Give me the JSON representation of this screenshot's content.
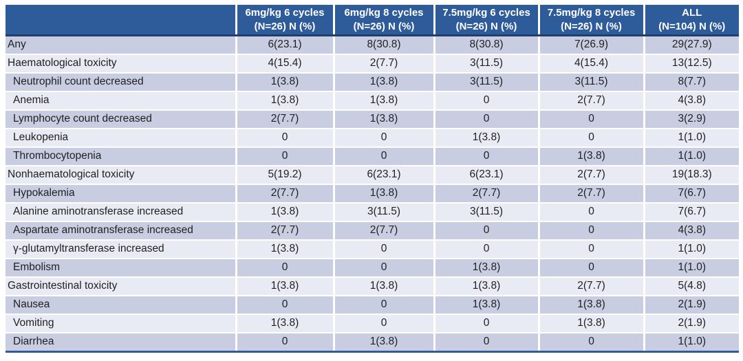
{
  "chart_data": {
    "type": "table",
    "header": {
      "row_label_column": "",
      "columns": [
        {
          "line1": "6mg/kg 6 cycles",
          "line2": "(N=26) N (%)"
        },
        {
          "line1": "6mg/kg 8 cycles",
          "line2": "(N=26) N (%)"
        },
        {
          "line1": "7.5mg/kg 6 cycles",
          "line2": "(N=26) N (%)"
        },
        {
          "line1": "7.5mg/kg 8 cycles",
          "line2": "(N=26) N (%)"
        },
        {
          "line1": "ALL",
          "line2": "(N=104) N (%)"
        }
      ]
    },
    "rows": [
      {
        "label": "Any",
        "level": 0,
        "values": [
          "6(23.1)",
          "8(30.8)",
          "8(30.8)",
          "7(26.9)",
          "29(27.9)"
        ]
      },
      {
        "label": "Haematological toxicity",
        "level": 0,
        "values": [
          "4(15.4)",
          "2(7.7)",
          "3(11.5)",
          "4(15.4)",
          "13(12.5)"
        ]
      },
      {
        "label": "Neutrophil count decreased",
        "level": 1,
        "values": [
          "1(3.8)",
          "1(3.8)",
          "3(11.5)",
          "3(11.5)",
          "8(7.7)"
        ]
      },
      {
        "label": "Anemia",
        "level": 1,
        "values": [
          "1(3.8)",
          "1(3.8)",
          "0",
          "2(7.7)",
          "4(3.8)"
        ]
      },
      {
        "label": "Lymphocyte count decreased",
        "level": 1,
        "values": [
          "2(7.7)",
          "1(3.8)",
          "0",
          "0",
          "3(2.9)"
        ]
      },
      {
        "label": "Leukopenia",
        "level": 1,
        "values": [
          "0",
          "0",
          "1(3.8)",
          "0",
          "1(1.0)"
        ]
      },
      {
        "label": "Thrombocytopenia",
        "level": 1,
        "values": [
          "0",
          "0",
          "0",
          "1(3.8)",
          "1(1.0)"
        ]
      },
      {
        "label": "Nonhaematological toxicity",
        "level": 0,
        "values": [
          "5(19.2)",
          "6(23.1)",
          "6(23.1)",
          "2(7.7)",
          "19(18.3)"
        ]
      },
      {
        "label": "Hypokalemia",
        "level": 1,
        "values": [
          "2(7.7)",
          "1(3.8)",
          "2(7.7)",
          "2(7.7)",
          "7(6.7)"
        ]
      },
      {
        "label": "Alanine aminotransferase increased",
        "level": 1,
        "values": [
          "1(3.8)",
          "3(11.5)",
          "3(11.5)",
          "0",
          "7(6.7)"
        ]
      },
      {
        "label": "Aspartate aminotransferase increased",
        "level": 1,
        "values": [
          "2(7.7)",
          "2(7.7)",
          "0",
          "0",
          "4(3.8)"
        ]
      },
      {
        "label": "γ-glutamyltransferase increased",
        "level": 1,
        "values": [
          "1(3.8)",
          "0",
          "0",
          "0",
          "1(1.0)"
        ]
      },
      {
        "label": "Embolism",
        "level": 1,
        "values": [
          "0",
          "0",
          "1(3.8)",
          "0",
          "1(1.0)"
        ]
      },
      {
        "label": "Gastrointestinal toxicity",
        "level": 0,
        "values": [
          "1(3.8)",
          "1(3.8)",
          "1(3.8)",
          "2(7.7)",
          "5(4.8)"
        ]
      },
      {
        "label": "Nausea",
        "level": 1,
        "values": [
          "0",
          "0",
          "1(3.8)",
          "1(3.8)",
          "2(1.9)"
        ]
      },
      {
        "label": "Vomiting",
        "level": 1,
        "values": [
          "1(3.8)",
          "0",
          "0",
          "1(3.8)",
          "2(1.9)"
        ]
      },
      {
        "label": "Diarrhea",
        "level": 1,
        "values": [
          "0",
          "1(3.8)",
          "0",
          "0",
          "1(1.0)"
        ]
      }
    ]
  },
  "colors": {
    "header_bg": "#2E5B9A",
    "header_border": "#1F3E6E",
    "header_text": "#FFFFFF",
    "row_dark": "#C9CDE2",
    "row_light": "#E9EBF4",
    "text": "#1F1F1F",
    "bottom_border": "#2E5B9A"
  }
}
